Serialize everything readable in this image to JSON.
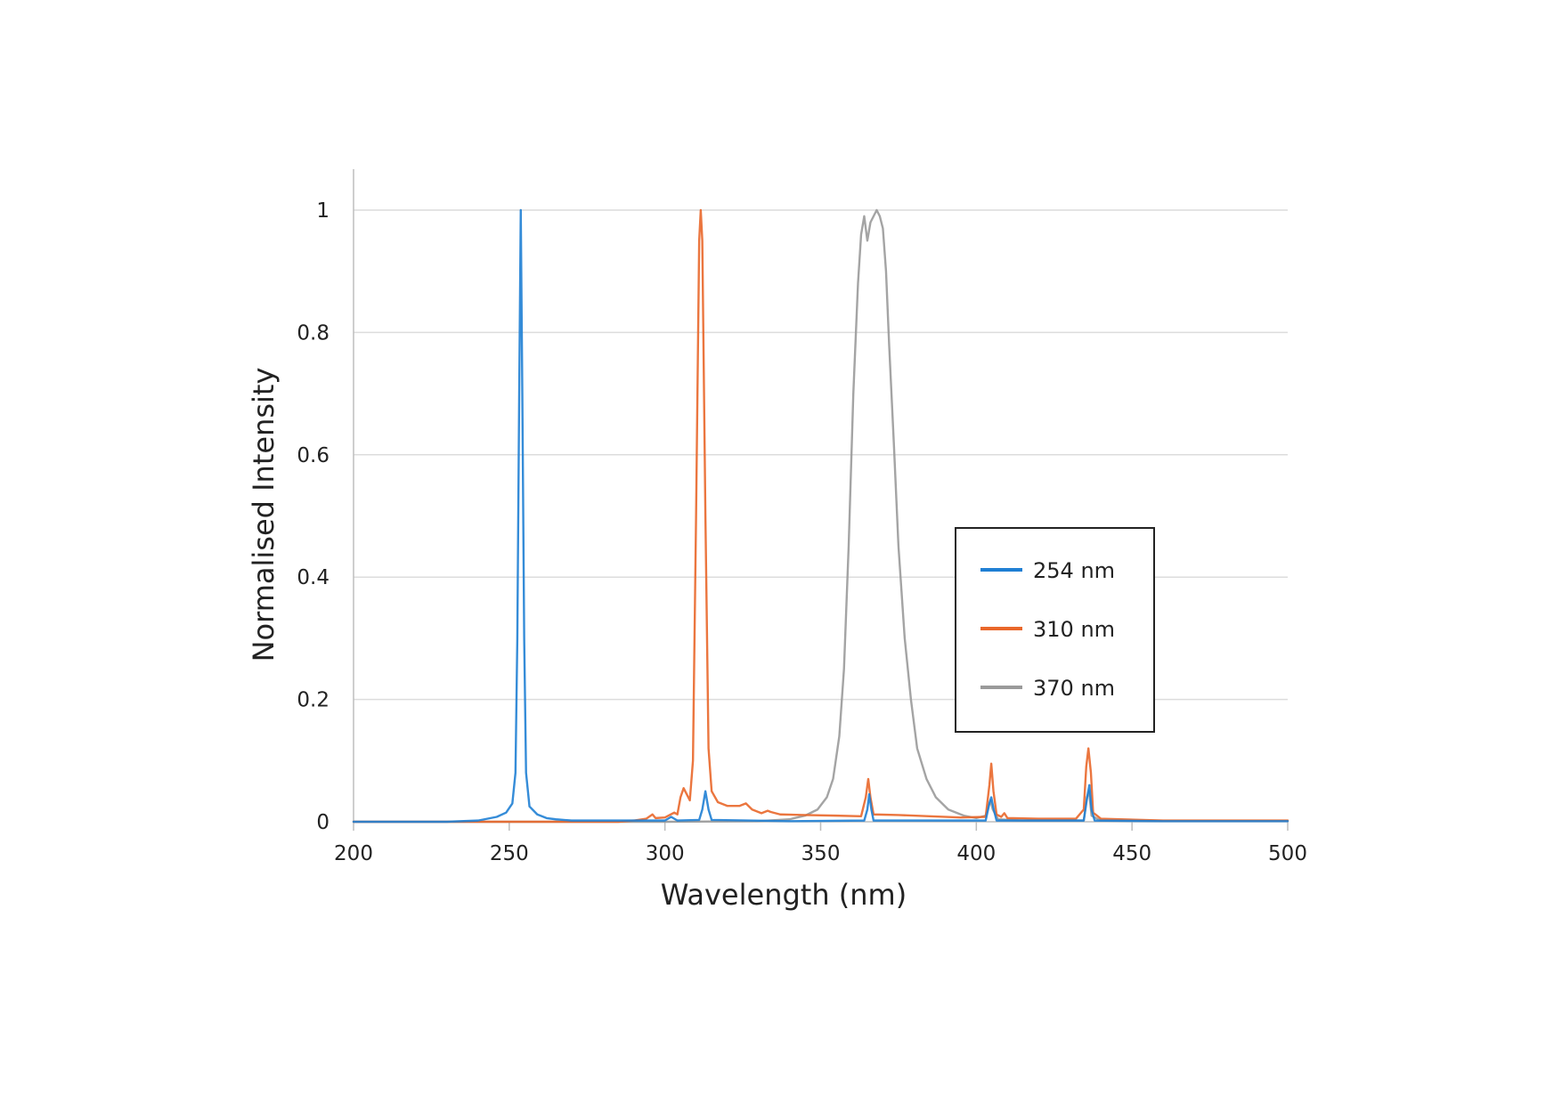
{
  "chart_data": {
    "type": "line",
    "title": "",
    "xlabel": "Wavelength (nm)",
    "ylabel": "Normalised Intensity",
    "xlim": [
      200,
      500
    ],
    "ylim": [
      0,
      1.05
    ],
    "xticks": [
      200,
      250,
      300,
      350,
      400,
      450,
      500
    ],
    "yticks": [
      0,
      0.2,
      0.4,
      0.6,
      0.8,
      1
    ],
    "ytick_labels": [
      "0",
      "0.2",
      "0.4",
      "0.6",
      "0.8",
      "1"
    ],
    "grid": "horizontal",
    "legend_position": "right-middle",
    "series": [
      {
        "name": "254 nm",
        "color": "#1f7fd4",
        "points": [
          [
            200,
            0
          ],
          [
            230,
            0
          ],
          [
            240,
            0.002
          ],
          [
            246,
            0.008
          ],
          [
            249,
            0.015
          ],
          [
            251,
            0.03
          ],
          [
            252,
            0.08
          ],
          [
            252.6,
            0.3
          ],
          [
            253.2,
            0.7
          ],
          [
            253.7,
            1.0
          ],
          [
            254.2,
            0.7
          ],
          [
            254.8,
            0.3
          ],
          [
            255.4,
            0.08
          ],
          [
            256.5,
            0.025
          ],
          [
            259,
            0.012
          ],
          [
            262,
            0.006
          ],
          [
            265,
            0.004
          ],
          [
            270,
            0.002
          ],
          [
            300,
            0.002
          ],
          [
            302,
            0.008
          ],
          [
            304,
            0.002
          ],
          [
            311,
            0.003
          ],
          [
            312,
            0.02
          ],
          [
            313,
            0.05
          ],
          [
            314,
            0.02
          ],
          [
            315,
            0.003
          ],
          [
            340,
            0.001
          ],
          [
            364,
            0.002
          ],
          [
            365,
            0.02
          ],
          [
            365.6,
            0.045
          ],
          [
            366.3,
            0.02
          ],
          [
            367,
            0.002
          ],
          [
            403,
            0.002
          ],
          [
            404.2,
            0.03
          ],
          [
            404.8,
            0.04
          ],
          [
            405.6,
            0.02
          ],
          [
            406.5,
            0.002
          ],
          [
            434.5,
            0.002
          ],
          [
            435.6,
            0.04
          ],
          [
            436.3,
            0.06
          ],
          [
            437,
            0.02
          ],
          [
            438,
            0.002
          ],
          [
            460,
            0.001
          ],
          [
            500,
            0.001
          ]
        ]
      },
      {
        "name": "310 nm",
        "color": "#e9672a",
        "points": [
          [
            200,
            0
          ],
          [
            285,
            0
          ],
          [
            290,
            0.002
          ],
          [
            294,
            0.005
          ],
          [
            296,
            0.012
          ],
          [
            297,
            0.006
          ],
          [
            300,
            0.007
          ],
          [
            303,
            0.015
          ],
          [
            304,
            0.012
          ],
          [
            305,
            0.04
          ],
          [
            306,
            0.055
          ],
          [
            307,
            0.045
          ],
          [
            308,
            0.035
          ],
          [
            309,
            0.1
          ],
          [
            310,
            0.5
          ],
          [
            311,
            0.95
          ],
          [
            311.5,
            1.0
          ],
          [
            312,
            0.95
          ],
          [
            313,
            0.5
          ],
          [
            314,
            0.12
          ],
          [
            315,
            0.05
          ],
          [
            317,
            0.032
          ],
          [
            320,
            0.026
          ],
          [
            324,
            0.026
          ],
          [
            326,
            0.03
          ],
          [
            328,
            0.02
          ],
          [
            331,
            0.014
          ],
          [
            333,
            0.018
          ],
          [
            334,
            0.016
          ],
          [
            337,
            0.012
          ],
          [
            345,
            0.011
          ],
          [
            355,
            0.01
          ],
          [
            363,
            0.009
          ],
          [
            364.5,
            0.04
          ],
          [
            365.3,
            0.07
          ],
          [
            366,
            0.04
          ],
          [
            367,
            0.012
          ],
          [
            375,
            0.011
          ],
          [
            385,
            0.009
          ],
          [
            395,
            0.007
          ],
          [
            403,
            0.008
          ],
          [
            404.2,
            0.06
          ],
          [
            404.8,
            0.095
          ],
          [
            405.5,
            0.05
          ],
          [
            406.5,
            0.012
          ],
          [
            408,
            0.008
          ],
          [
            409,
            0.014
          ],
          [
            410,
            0.006
          ],
          [
            420,
            0.005
          ],
          [
            432,
            0.005
          ],
          [
            434.5,
            0.02
          ],
          [
            435.3,
            0.09
          ],
          [
            436,
            0.12
          ],
          [
            436.8,
            0.08
          ],
          [
            437.5,
            0.015
          ],
          [
            440,
            0.005
          ],
          [
            460,
            0.002
          ],
          [
            500,
            0.002
          ]
        ]
      },
      {
        "name": "370 nm",
        "color": "#9a9a9a",
        "points": [
          [
            200,
            0
          ],
          [
            300,
            0
          ],
          [
            330,
            0.001
          ],
          [
            340,
            0.004
          ],
          [
            345,
            0.01
          ],
          [
            349,
            0.02
          ],
          [
            352,
            0.04
          ],
          [
            354,
            0.07
          ],
          [
            356,
            0.14
          ],
          [
            357.5,
            0.25
          ],
          [
            359,
            0.45
          ],
          [
            360.5,
            0.7
          ],
          [
            362,
            0.88
          ],
          [
            363,
            0.96
          ],
          [
            364,
            0.99
          ],
          [
            365,
            0.95
          ],
          [
            366,
            0.98
          ],
          [
            367,
            0.99
          ],
          [
            368,
            1.0
          ],
          [
            369,
            0.99
          ],
          [
            370,
            0.97
          ],
          [
            371,
            0.9
          ],
          [
            372,
            0.78
          ],
          [
            373.5,
            0.62
          ],
          [
            375,
            0.45
          ],
          [
            377,
            0.3
          ],
          [
            379,
            0.2
          ],
          [
            381,
            0.12
          ],
          [
            384,
            0.07
          ],
          [
            387,
            0.04
          ],
          [
            391,
            0.02
          ],
          [
            396,
            0.01
          ],
          [
            400,
            0.006
          ],
          [
            403,
            0.01
          ],
          [
            404.5,
            0.035
          ],
          [
            405.3,
            0.02
          ],
          [
            407,
            0.004
          ],
          [
            415,
            0.002
          ],
          [
            434.5,
            0.002
          ],
          [
            435.5,
            0.04
          ],
          [
            436.2,
            0.05
          ],
          [
            437,
            0.01
          ],
          [
            440,
            0.002
          ],
          [
            460,
            0.001
          ],
          [
            500,
            0.001
          ]
        ]
      }
    ]
  }
}
